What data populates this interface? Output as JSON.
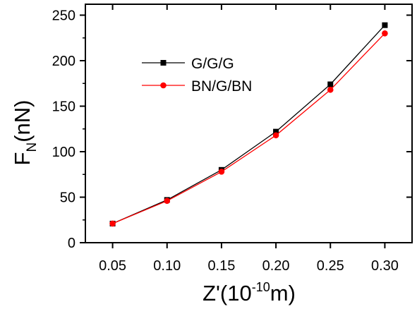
{
  "chart_data": {
    "type": "line",
    "x": [
      0.05,
      0.1,
      0.15,
      0.2,
      0.25,
      0.3
    ],
    "x_tick_labels": [
      "0.05",
      "0.10",
      "0.15",
      "0.20",
      "0.25",
      "0.30"
    ],
    "y_tick_labels": [
      "0",
      "50",
      "100",
      "150",
      "200",
      "250"
    ],
    "y_ticks": [
      0,
      50,
      100,
      150,
      200,
      250
    ],
    "xlim": [
      0.025,
      0.325
    ],
    "ylim": [
      0,
      262
    ],
    "xlabel": {
      "base": "Z'(10",
      "sup": "-10",
      "tail": "m)"
    },
    "ylabel": {
      "base": "F",
      "sub": "N",
      "tail": "(nN)"
    },
    "grid": false,
    "legend_position": "top-left",
    "series": [
      {
        "name": "G/G/G",
        "values": [
          21,
          47,
          80,
          122,
          174,
          239
        ],
        "color": "#000000",
        "marker": "square"
      },
      {
        "name": "BN/G/BN",
        "values": [
          21,
          46,
          78,
          118,
          168,
          230
        ],
        "color": "#ff0000",
        "marker": "circle"
      }
    ]
  }
}
